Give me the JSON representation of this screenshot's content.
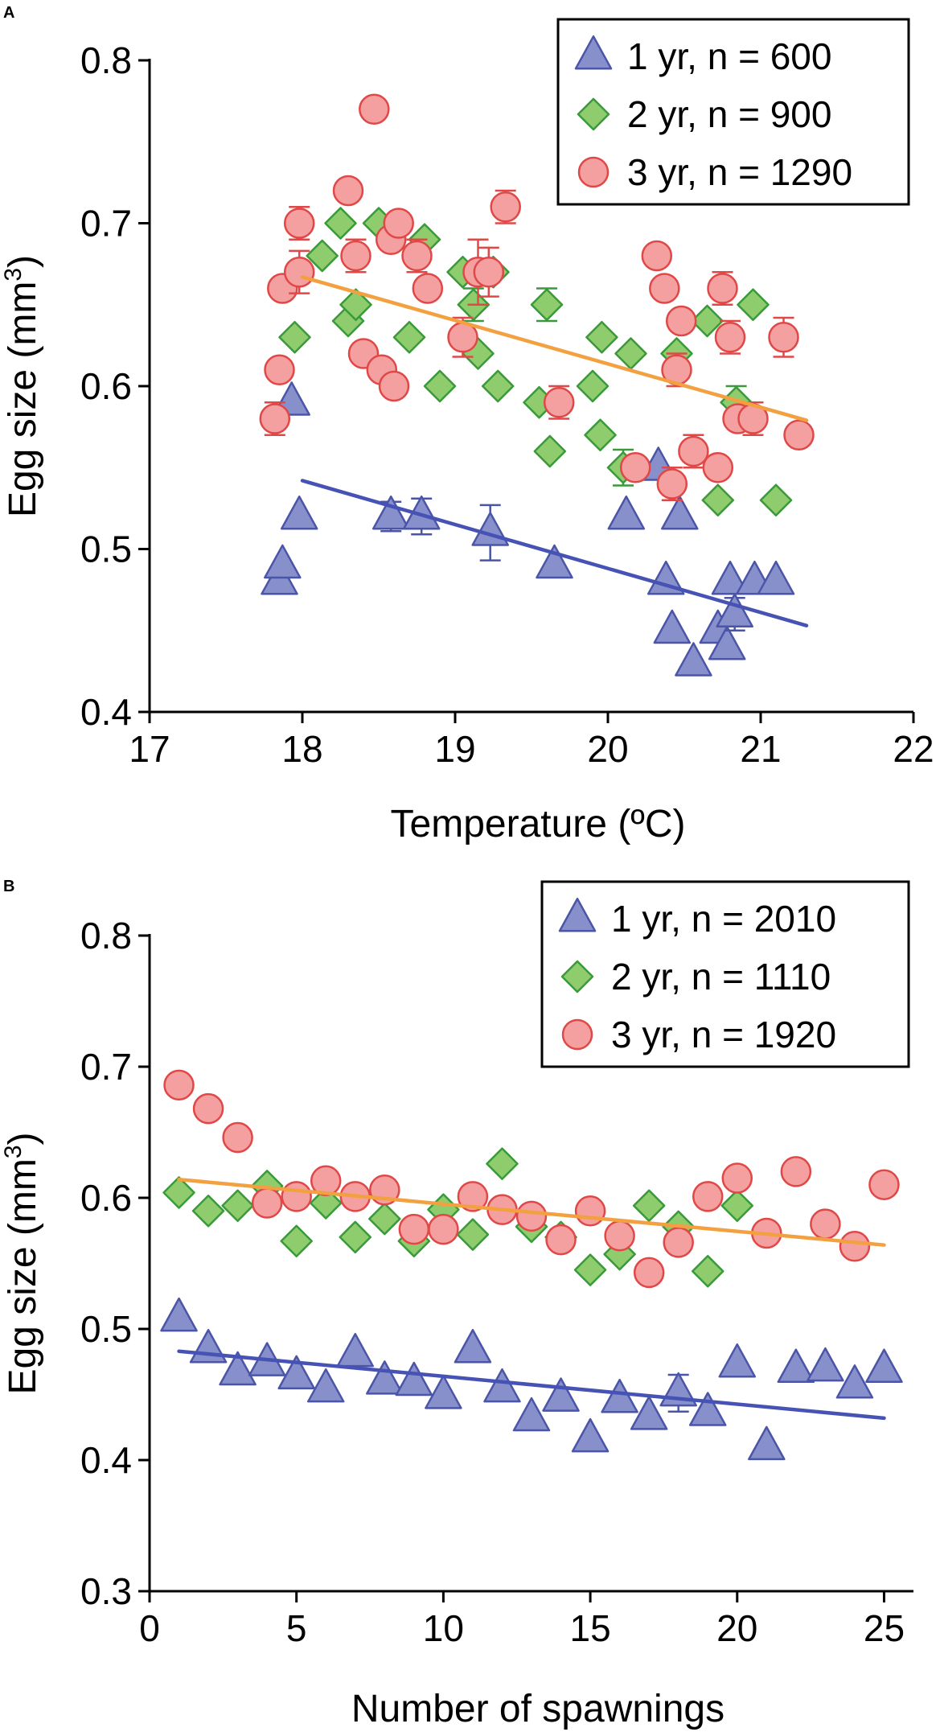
{
  "chart_data": [
    {
      "panel_label": "A",
      "type": "scatter",
      "xlabel": "Temperature (ºC)",
      "ylabel_main": "Egg size (mm",
      "ylabel_sup": "3",
      "ylabel_close": ")",
      "xlim": [
        17,
        22
      ],
      "ylim": [
        0.4,
        0.8
      ],
      "xticks": [
        17,
        18,
        19,
        20,
        21,
        22
      ],
      "yticks": [
        0.4,
        0.5,
        0.6,
        0.7,
        0.8
      ],
      "ytick_labels": [
        "0.4",
        "0.5",
        "0.6",
        "0.7",
        "0.8"
      ],
      "legend_position": "top-right",
      "legend": [
        {
          "label": "1 yr, n = 600",
          "marker": "triangle"
        },
        {
          "label": "2 yr, n = 900",
          "marker": "diamond"
        },
        {
          "label": "3 yr, n = 1290",
          "marker": "circle"
        }
      ],
      "series": [
        {
          "name": "1 yr",
          "marker": "triangle",
          "fill": "#8890CC",
          "stroke": "#4A55A8",
          "trend": {
            "x": [
              18.0,
              21.3
            ],
            "y": [
              0.542,
              0.453
            ],
            "color": "#4652B4"
          },
          "points": [
            {
              "x": 17.85,
              "y": 0.48
            },
            {
              "x": 17.87,
              "y": 0.49
            },
            {
              "x": 17.93,
              "y": 0.59
            },
            {
              "x": 17.98,
              "y": 0.52
            },
            {
              "x": 18.58,
              "y": 0.52,
              "err": 0.009
            },
            {
              "x": 18.78,
              "y": 0.52,
              "err": 0.011
            },
            {
              "x": 19.23,
              "y": 0.51,
              "err": 0.017
            },
            {
              "x": 19.65,
              "y": 0.49
            },
            {
              "x": 20.12,
              "y": 0.52
            },
            {
              "x": 20.33,
              "y": 0.55
            },
            {
              "x": 20.38,
              "y": 0.48
            },
            {
              "x": 20.42,
              "y": 0.45
            },
            {
              "x": 20.47,
              "y": 0.52
            },
            {
              "x": 20.56,
              "y": 0.43
            },
            {
              "x": 20.72,
              "y": 0.45
            },
            {
              "x": 20.78,
              "y": 0.44
            },
            {
              "x": 20.8,
              "y": 0.48
            },
            {
              "x": 20.83,
              "y": 0.46,
              "err": 0.01
            },
            {
              "x": 20.96,
              "y": 0.48
            },
            {
              "x": 21.1,
              "y": 0.48
            }
          ]
        },
        {
          "name": "2 yr",
          "marker": "diamond",
          "fill": "#8FCC6E",
          "stroke": "#3A9A3A",
          "trend": null,
          "points": [
            {
              "x": 17.95,
              "y": 0.63
            },
            {
              "x": 18.13,
              "y": 0.68
            },
            {
              "x": 18.25,
              "y": 0.7
            },
            {
              "x": 18.3,
              "y": 0.64
            },
            {
              "x": 18.35,
              "y": 0.65
            },
            {
              "x": 18.5,
              "y": 0.7
            },
            {
              "x": 18.7,
              "y": 0.63
            },
            {
              "x": 18.8,
              "y": 0.69
            },
            {
              "x": 18.9,
              "y": 0.6
            },
            {
              "x": 19.05,
              "y": 0.67
            },
            {
              "x": 19.12,
              "y": 0.65,
              "err": 0.01
            },
            {
              "x": 19.15,
              "y": 0.62
            },
            {
              "x": 19.25,
              "y": 0.67
            },
            {
              "x": 19.28,
              "y": 0.6
            },
            {
              "x": 19.55,
              "y": 0.59
            },
            {
              "x": 19.6,
              "y": 0.65,
              "err": 0.01
            },
            {
              "x": 19.62,
              "y": 0.56
            },
            {
              "x": 19.9,
              "y": 0.6
            },
            {
              "x": 19.95,
              "y": 0.57
            },
            {
              "x": 19.96,
              "y": 0.63
            },
            {
              "x": 20.1,
              "y": 0.55,
              "err": 0.011
            },
            {
              "x": 20.15,
              "y": 0.62
            },
            {
              "x": 20.45,
              "y": 0.62
            },
            {
              "x": 20.65,
              "y": 0.64
            },
            {
              "x": 20.72,
              "y": 0.53
            },
            {
              "x": 20.84,
              "y": 0.59,
              "err": 0.01
            },
            {
              "x": 20.95,
              "y": 0.65
            },
            {
              "x": 21.1,
              "y": 0.53
            }
          ]
        },
        {
          "name": "3 yr",
          "marker": "circle",
          "fill": "#F4A0A0",
          "stroke": "#E04848",
          "trend": {
            "x": [
              18.0,
              21.3
            ],
            "y": [
              0.667,
              0.579
            ],
            "color": "#F2A040"
          },
          "points": [
            {
              "x": 17.82,
              "y": 0.58,
              "err": 0.01
            },
            {
              "x": 17.85,
              "y": 0.61
            },
            {
              "x": 17.87,
              "y": 0.66
            },
            {
              "x": 17.98,
              "y": 0.7,
              "err": 0.01
            },
            {
              "x": 17.98,
              "y": 0.67,
              "err": 0.013
            },
            {
              "x": 18.3,
              "y": 0.72
            },
            {
              "x": 18.35,
              "y": 0.68,
              "err": 0.01
            },
            {
              "x": 18.4,
              "y": 0.62
            },
            {
              "x": 18.47,
              "y": 0.77
            },
            {
              "x": 18.52,
              "y": 0.61
            },
            {
              "x": 18.58,
              "y": 0.69
            },
            {
              "x": 18.6,
              "y": 0.6
            },
            {
              "x": 18.63,
              "y": 0.7
            },
            {
              "x": 18.75,
              "y": 0.68,
              "err": 0.01
            },
            {
              "x": 18.82,
              "y": 0.66
            },
            {
              "x": 19.05,
              "y": 0.63,
              "err": 0.012
            },
            {
              "x": 19.15,
              "y": 0.67,
              "err": 0.02
            },
            {
              "x": 19.22,
              "y": 0.67,
              "err": 0.015
            },
            {
              "x": 19.33,
              "y": 0.71,
              "err": 0.01
            },
            {
              "x": 19.68,
              "y": 0.59,
              "err": 0.01
            },
            {
              "x": 20.18,
              "y": 0.55
            },
            {
              "x": 20.32,
              "y": 0.68
            },
            {
              "x": 20.37,
              "y": 0.66
            },
            {
              "x": 20.42,
              "y": 0.54,
              "err": 0.01
            },
            {
              "x": 20.45,
              "y": 0.61,
              "err": 0.01
            },
            {
              "x": 20.48,
              "y": 0.64
            },
            {
              "x": 20.56,
              "y": 0.56,
              "err": 0.01
            },
            {
              "x": 20.72,
              "y": 0.55
            },
            {
              "x": 20.75,
              "y": 0.66,
              "err": 0.01
            },
            {
              "x": 20.8,
              "y": 0.63,
              "err": 0.01
            },
            {
              "x": 20.85,
              "y": 0.58
            },
            {
              "x": 20.95,
              "y": 0.58,
              "err": 0.01
            },
            {
              "x": 21.15,
              "y": 0.63,
              "err": 0.012
            },
            {
              "x": 21.25,
              "y": 0.57
            }
          ]
        }
      ]
    },
    {
      "panel_label": "B",
      "type": "scatter",
      "xlabel": "Number of spawnings",
      "ylabel_main": "Egg size (mm",
      "ylabel_sup": "3",
      "ylabel_close": ")",
      "xlim": [
        0,
        26
      ],
      "ylim": [
        0.3,
        0.8
      ],
      "xticks": [
        0,
        5,
        10,
        15,
        20,
        25
      ],
      "yticks": [
        0.3,
        0.4,
        0.5,
        0.6,
        0.7,
        0.8
      ],
      "ytick_labels": [
        "0.3",
        "0.4",
        "0.5",
        "0.6",
        "0.7",
        "0.8"
      ],
      "legend_position": "top-right",
      "legend": [
        {
          "label": "1 yr, n = 2010",
          "marker": "triangle"
        },
        {
          "label": "2 yr, n = 1110",
          "marker": "diamond"
        },
        {
          "label": "3 yr, n = 1920",
          "marker": "circle"
        }
      ],
      "series": [
        {
          "name": "1 yr",
          "marker": "triangle",
          "fill": "#8890CC",
          "stroke": "#4A55A8",
          "trend": {
            "x": [
              1,
              25
            ],
            "y": [
              0.483,
              0.432
            ],
            "color": "#4652B4"
          },
          "points": [
            {
              "x": 1,
              "y": 0.508
            },
            {
              "x": 2,
              "y": 0.484
            },
            {
              "x": 3,
              "y": 0.467
            },
            {
              "x": 4,
              "y": 0.474
            },
            {
              "x": 5,
              "y": 0.464
            },
            {
              "x": 6,
              "y": 0.454
            },
            {
              "x": 7,
              "y": 0.481
            },
            {
              "x": 8,
              "y": 0.46
            },
            {
              "x": 9,
              "y": 0.459
            },
            {
              "x": 10,
              "y": 0.449
            },
            {
              "x": 11,
              "y": 0.484
            },
            {
              "x": 12,
              "y": 0.454
            },
            {
              "x": 13,
              "y": 0.432
            },
            {
              "x": 14,
              "y": 0.447
            },
            {
              "x": 15,
              "y": 0.416
            },
            {
              "x": 16,
              "y": 0.446
            },
            {
              "x": 17,
              "y": 0.433
            },
            {
              "x": 18,
              "y": 0.451,
              "err": 0.014
            },
            {
              "x": 19,
              "y": 0.436
            },
            {
              "x": 20,
              "y": 0.473
            },
            {
              "x": 21,
              "y": 0.41
            },
            {
              "x": 22,
              "y": 0.469
            },
            {
              "x": 23,
              "y": 0.47
            },
            {
              "x": 24,
              "y": 0.457
            },
            {
              "x": 25,
              "y": 0.469
            }
          ]
        },
        {
          "name": "2 yr",
          "marker": "diamond",
          "fill": "#8FCC6E",
          "stroke": "#3A9A3A",
          "trend": null,
          "points": [
            {
              "x": 1,
              "y": 0.604
            },
            {
              "x": 2,
              "y": 0.59
            },
            {
              "x": 3,
              "y": 0.594
            },
            {
              "x": 4,
              "y": 0.609
            },
            {
              "x": 5,
              "y": 0.567
            },
            {
              "x": 6,
              "y": 0.596
            },
            {
              "x": 7,
              "y": 0.57
            },
            {
              "x": 8,
              "y": 0.584
            },
            {
              "x": 9,
              "y": 0.567
            },
            {
              "x": 10,
              "y": 0.591
            },
            {
              "x": 11,
              "y": 0.572
            },
            {
              "x": 12,
              "y": 0.626
            },
            {
              "x": 13,
              "y": 0.578
            },
            {
              "x": 14,
              "y": 0.57
            },
            {
              "x": 15,
              "y": 0.545
            },
            {
              "x": 16,
              "y": 0.557
            },
            {
              "x": 17,
              "y": 0.594
            },
            {
              "x": 18,
              "y": 0.578
            },
            {
              "x": 19,
              "y": 0.544
            },
            {
              "x": 20,
              "y": 0.594
            }
          ]
        },
        {
          "name": "3 yr",
          "marker": "circle",
          "fill": "#F4A0A0",
          "stroke": "#E04848",
          "trend": {
            "x": [
              1,
              25
            ],
            "y": [
              0.614,
              0.564
            ],
            "color": "#F2A040"
          },
          "points": [
            {
              "x": 1,
              "y": 0.686
            },
            {
              "x": 2,
              "y": 0.668
            },
            {
              "x": 3,
              "y": 0.646
            },
            {
              "x": 4,
              "y": 0.596
            },
            {
              "x": 5,
              "y": 0.601
            },
            {
              "x": 6,
              "y": 0.613
            },
            {
              "x": 7,
              "y": 0.601
            },
            {
              "x": 8,
              "y": 0.606
            },
            {
              "x": 9,
              "y": 0.576
            },
            {
              "x": 10,
              "y": 0.576
            },
            {
              "x": 11,
              "y": 0.601
            },
            {
              "x": 12,
              "y": 0.591
            },
            {
              "x": 13,
              "y": 0.586
            },
            {
              "x": 14,
              "y": 0.568
            },
            {
              "x": 15,
              "y": 0.59
            },
            {
              "x": 16,
              "y": 0.571
            },
            {
              "x": 17,
              "y": 0.543
            },
            {
              "x": 18,
              "y": 0.566
            },
            {
              "x": 19,
              "y": 0.601
            },
            {
              "x": 20,
              "y": 0.615
            },
            {
              "x": 21,
              "y": 0.573
            },
            {
              "x": 22,
              "y": 0.62
            },
            {
              "x": 23,
              "y": 0.58
            },
            {
              "x": 24,
              "y": 0.563
            },
            {
              "x": 25,
              "y": 0.61
            }
          ]
        }
      ]
    }
  ]
}
